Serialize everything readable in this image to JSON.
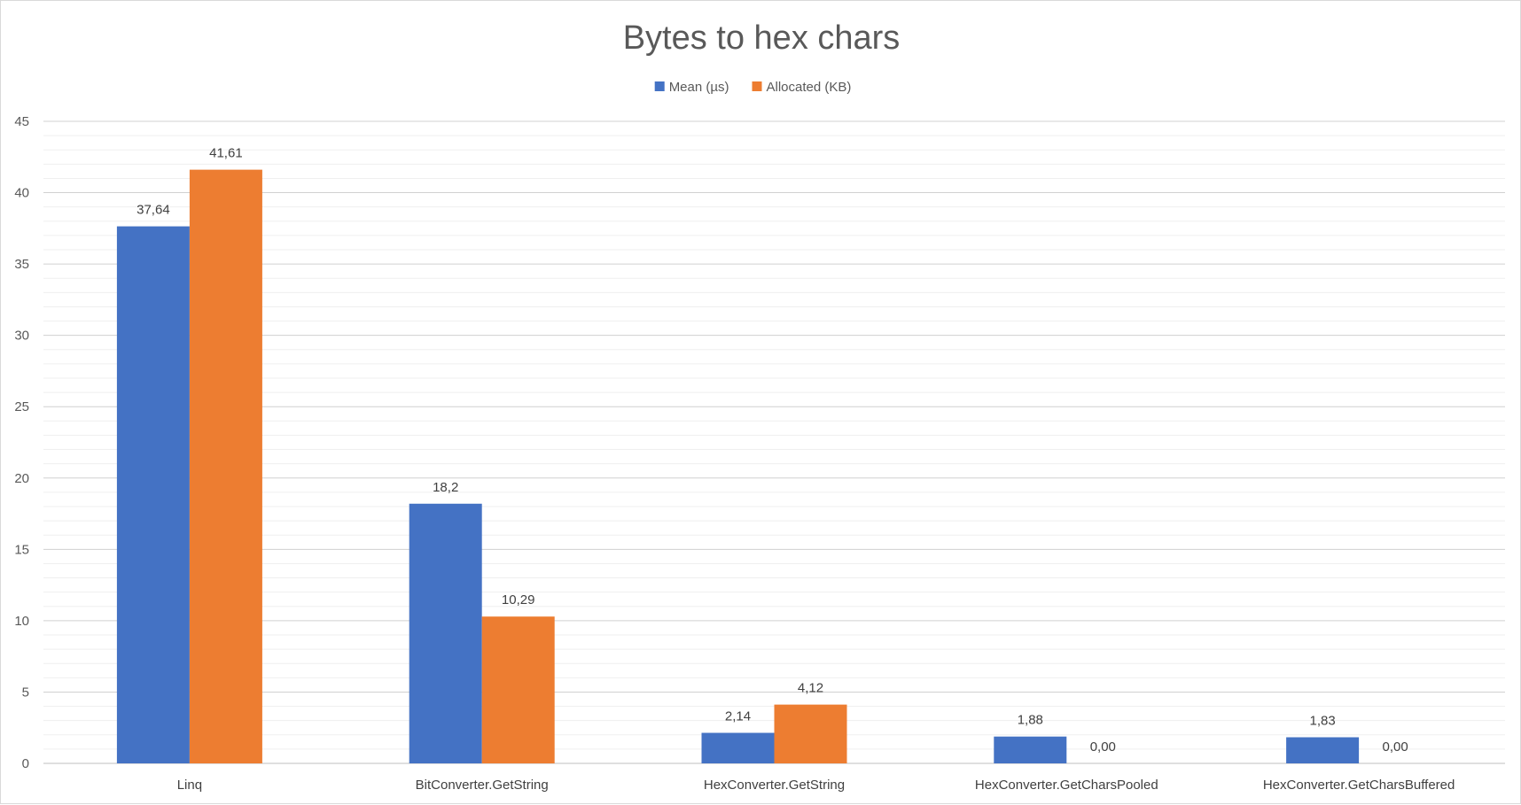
{
  "chart_data": {
    "type": "bar",
    "title": "Bytes to hex chars",
    "xlabel": "",
    "ylabel": "",
    "categories": [
      "Linq",
      "BitConverter.GetString",
      "HexConverter.GetString",
      "HexConverter.GetCharsPooled",
      "HexConverter.GetCharsBuffered"
    ],
    "series": [
      {
        "name": "Mean (µs)",
        "color": "#4472C4",
        "values": [
          37.64,
          18.2,
          2.14,
          1.88,
          1.83
        ],
        "labels": [
          "37,64",
          "18,2",
          "2,14",
          "1,88",
          "1,83"
        ]
      },
      {
        "name": "Allocated (KB)",
        "color": "#ED7D31",
        "values": [
          41.61,
          10.29,
          4.12,
          0.0,
          0.0
        ],
        "labels": [
          "41,61",
          "10,29",
          "4,12",
          "0,00",
          "0,00"
        ]
      }
    ],
    "ylim": [
      0,
      45
    ],
    "yticks": [
      0,
      5,
      10,
      15,
      20,
      25,
      30,
      35,
      40,
      45
    ],
    "minor_step": 1,
    "grid": true,
    "legend": "top-center"
  }
}
